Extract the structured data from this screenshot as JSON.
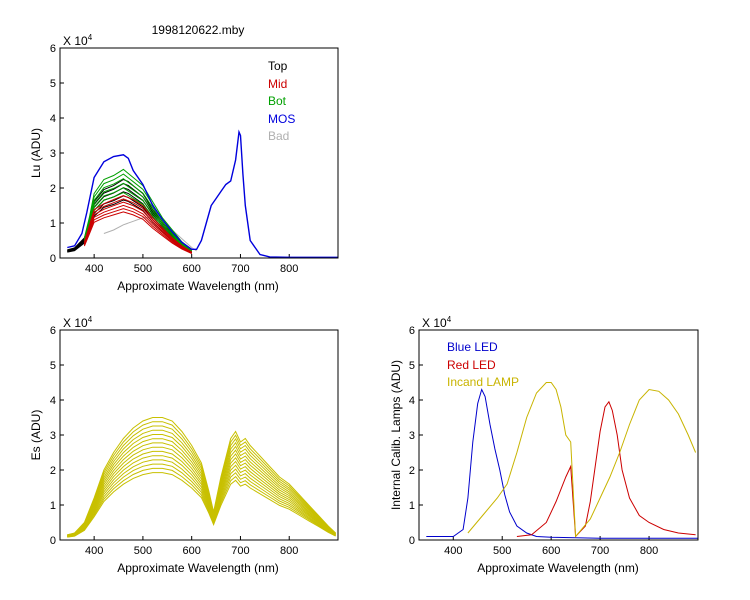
{
  "chart_data": [
    {
      "type": "line",
      "title": "1998120622.mby",
      "xlabel": "Approximate Wavelength (nm)",
      "ylabel": "Lu (ADU)",
      "y_exponent": "X 10",
      "y_exponent_power": "4",
      "xlim": [
        330,
        900
      ],
      "ylim": [
        0,
        6
      ],
      "xticks": [
        400,
        500,
        600,
        700,
        800
      ],
      "yticks": [
        0,
        1,
        2,
        3,
        4,
        5,
        6
      ],
      "legend_position": "top-right",
      "series": [
        {
          "name": "Top",
          "color": "#000000",
          "x": [
            345,
            360,
            380,
            390,
            400,
            420,
            440,
            460,
            470,
            480,
            500,
            520,
            540,
            560,
            580,
            600
          ],
          "y": [
            0.2,
            0.25,
            0.5,
            0.9,
            1.4,
            1.7,
            1.8,
            1.95,
            1.9,
            1.8,
            1.6,
            1.2,
            0.9,
            0.6,
            0.35,
            0.15
          ]
        },
        {
          "name": "Mid",
          "color": "#cc0000",
          "x": [
            380,
            390,
            400,
            420,
            440,
            460,
            470,
            480,
            500,
            520,
            540,
            560,
            580,
            600
          ],
          "y": [
            0.4,
            0.8,
            1.2,
            1.35,
            1.45,
            1.55,
            1.5,
            1.45,
            1.3,
            1.0,
            0.75,
            0.5,
            0.3,
            0.15
          ]
        },
        {
          "name": "Bot",
          "color": "#00a000",
          "x": [
            380,
            390,
            400,
            420,
            440,
            460,
            470,
            480,
            500,
            520,
            540,
            560,
            580,
            600
          ],
          "y": [
            0.5,
            1.0,
            1.6,
            1.95,
            2.05,
            2.2,
            2.1,
            2.0,
            1.8,
            1.4,
            1.0,
            0.7,
            0.4,
            0.2
          ]
        },
        {
          "name": "MOS",
          "color": "#0000dd",
          "x": [
            345,
            360,
            375,
            385,
            400,
            420,
            440,
            460,
            470,
            480,
            500,
            520,
            540,
            560,
            580,
            600,
            610,
            620,
            630,
            640,
            650,
            660,
            670,
            680,
            690,
            697,
            700,
            705,
            710,
            720,
            740,
            760,
            800,
            850,
            900
          ],
          "y": [
            0.3,
            0.35,
            0.7,
            1.3,
            2.3,
            2.75,
            2.9,
            2.95,
            2.85,
            2.5,
            2.1,
            1.5,
            1.1,
            0.75,
            0.45,
            0.25,
            0.25,
            0.5,
            1.0,
            1.5,
            1.7,
            1.9,
            2.1,
            2.2,
            2.8,
            3.6,
            3.5,
            2.4,
            1.5,
            0.5,
            0.1,
            0.03,
            0.02,
            0.02,
            0.02
          ]
        },
        {
          "name": "Bad",
          "color": "#b0b0b0",
          "x": [
            420,
            440,
            460,
            480,
            500,
            520,
            540,
            560,
            580,
            600,
            610
          ],
          "y": [
            0.7,
            0.8,
            0.95,
            1.05,
            1.15,
            1.15,
            1.0,
            0.8,
            0.55,
            0.3,
            0.2
          ]
        }
      ]
    },
    {
      "type": "line",
      "title": "",
      "xlabel": "Approximate Wavelength (nm)",
      "ylabel": "Es  (ADU)",
      "y_exponent": "X 10",
      "y_exponent_power": "4",
      "xlim": [
        330,
        900
      ],
      "ylim": [
        0,
        6
      ],
      "xticks": [
        400,
        500,
        600,
        700,
        800
      ],
      "yticks": [
        0,
        1,
        2,
        3,
        4,
        5,
        6
      ],
      "series": [
        {
          "color": "#c8c000",
          "x": [
            345,
            360,
            380,
            400,
            420,
            440,
            460,
            480,
            500,
            520,
            540,
            560,
            580,
            600,
            620,
            635,
            645,
            660,
            680,
            690,
            700,
            710,
            720,
            740,
            760,
            780,
            800,
            820,
            840,
            860,
            880,
            895
          ],
          "y": [
            0.15,
            0.2,
            0.5,
            1.2,
            2.0,
            2.5,
            2.9,
            3.2,
            3.4,
            3.5,
            3.5,
            3.4,
            3.1,
            2.7,
            2.2,
            1.4,
            0.8,
            1.8,
            2.9,
            3.1,
            2.8,
            2.9,
            2.7,
            2.4,
            2.1,
            1.8,
            1.6,
            1.3,
            1.0,
            0.7,
            0.4,
            0.2
          ]
        }
      ]
    },
    {
      "type": "line",
      "title": "",
      "xlabel": "Approximate Wavelength (nm)",
      "ylabel": "Internal Calib. Lamps (ADU)",
      "y_exponent": "X 10",
      "y_exponent_power": "4",
      "xlim": [
        330,
        900
      ],
      "ylim": [
        0,
        6
      ],
      "xticks": [
        400,
        500,
        600,
        700,
        800
      ],
      "yticks": [
        0,
        1,
        2,
        3,
        4,
        5,
        6
      ],
      "legend_position": "top-left",
      "series": [
        {
          "name": "Blue LED",
          "color": "#0000cc",
          "x": [
            345,
            400,
            420,
            430,
            440,
            450,
            458,
            465,
            475,
            485,
            495,
            505,
            515,
            530,
            550,
            570,
            600,
            700,
            800,
            900
          ],
          "y": [
            0.1,
            0.1,
            0.3,
            1.2,
            2.8,
            3.9,
            4.3,
            4.1,
            3.3,
            2.6,
            2.0,
            1.3,
            0.8,
            0.4,
            0.2,
            0.1,
            0.08,
            0.05,
            0.05,
            0.05
          ]
        },
        {
          "name": "Red LED",
          "color": "#cc0000",
          "x": [
            530,
            560,
            590,
            610,
            630,
            640,
            650,
            670,
            680,
            690,
            700,
            710,
            718,
            725,
            735,
            745,
            760,
            780,
            800,
            830,
            860,
            895
          ],
          "y": [
            0.1,
            0.15,
            0.5,
            1.1,
            1.8,
            2.1,
            0.1,
            0.4,
            1.1,
            2.1,
            3.1,
            3.8,
            3.95,
            3.7,
            3.0,
            2.0,
            1.2,
            0.7,
            0.5,
            0.3,
            0.2,
            0.15
          ]
        },
        {
          "name": "Incand LAMP",
          "color": "#c8b400",
          "x": [
            430,
            460,
            490,
            510,
            530,
            550,
            570,
            590,
            600,
            610,
            620,
            630,
            640,
            650,
            680,
            700,
            720,
            740,
            760,
            780,
            800,
            820,
            840,
            860,
            880,
            895
          ],
          "y": [
            0.2,
            0.7,
            1.2,
            1.6,
            2.5,
            3.5,
            4.2,
            4.5,
            4.5,
            4.3,
            3.8,
            3.0,
            2.8,
            0.1,
            0.6,
            1.2,
            1.8,
            2.5,
            3.3,
            4.0,
            4.3,
            4.25,
            4.0,
            3.6,
            3.0,
            2.5
          ]
        }
      ]
    }
  ],
  "legend_top": [
    "Top",
    "Mid",
    "Bot",
    "MOS",
    "Bad"
  ],
  "legend_lamps": [
    "Blue LED",
    "Red LED",
    "Incand LAMP"
  ]
}
